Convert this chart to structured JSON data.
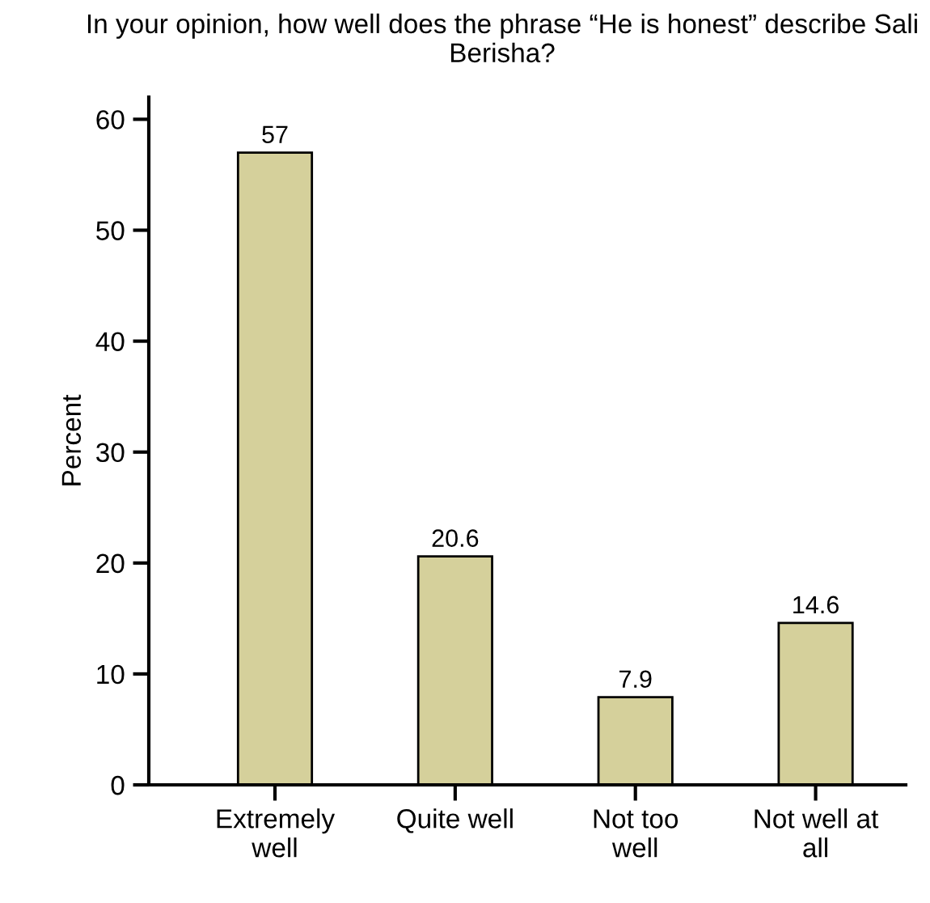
{
  "chart_data": {
    "type": "bar",
    "title": "In your opinion, how well does the phrase “He is honest” describe Sali Berisha?",
    "ylabel": "Percent",
    "categories": [
      "Extremely\nwell",
      "Quite well",
      "Not too\nwell",
      "Not well at\nall"
    ],
    "values": [
      57,
      20.6,
      7.9,
      14.6
    ],
    "color": "#d5d09b",
    "ylim": [
      0,
      62
    ],
    "yticks": [
      0,
      10,
      20,
      30,
      40,
      50,
      60
    ],
    "grid": false,
    "data_labels": true
  }
}
